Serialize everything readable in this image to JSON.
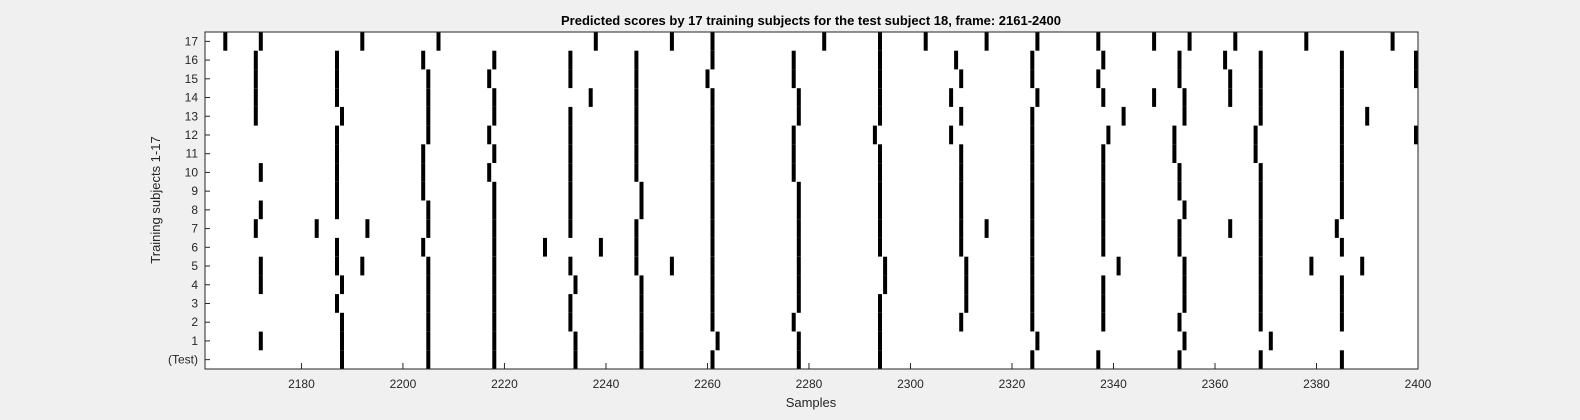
{
  "chart_data": {
    "type": "raster",
    "title": "Predicted scores by 17 training subjects for the test subject 18, frame: 2161-2400",
    "xlabel": "Samples",
    "ylabel": "Training subjects 1-17",
    "xlim": [
      2161,
      2400
    ],
    "x_ticks": [
      2180,
      2200,
      2220,
      2240,
      2260,
      2280,
      2300,
      2320,
      2340,
      2360,
      2380,
      2400
    ],
    "y_tick_labels": [
      "(Test)",
      "1",
      "2",
      "3",
      "4",
      "5",
      "6",
      "7",
      "8",
      "9",
      "10",
      "11",
      "12",
      "13",
      "14",
      "15",
      "16",
      "17"
    ],
    "colors": {
      "spike": "#000000",
      "plot_bg": "#ffffff",
      "figure_bg": "#f0f0f0"
    },
    "rows": [
      {
        "label": "(Test)",
        "events": [
          2188,
          2205,
          2218,
          2234,
          2247,
          2261,
          2278,
          2294,
          2324,
          2337,
          2353,
          2369,
          2385
        ]
      },
      {
        "label": "1",
        "events": [
          2172,
          2188,
          2205,
          2218,
          2234,
          2247,
          2262,
          2278,
          2294,
          2325,
          2354,
          2371
        ]
      },
      {
        "label": "2",
        "events": [
          2188,
          2205,
          2218,
          2233,
          2247,
          2261,
          2277,
          2294,
          2310,
          2324,
          2338,
          2353,
          2369,
          2385
        ]
      },
      {
        "label": "3",
        "events": [
          2187,
          2205,
          2218,
          2233,
          2247,
          2261,
          2278,
          2294,
          2311,
          2324,
          2338,
          2354,
          2369,
          2385
        ]
      },
      {
        "label": "4",
        "events": [
          2172,
          2188,
          2205,
          2218,
          2234,
          2247,
          2261,
          2278,
          2295,
          2311,
          2324,
          2338,
          2354,
          2369,
          2385
        ]
      },
      {
        "label": "5",
        "events": [
          2172,
          2187,
          2192,
          2205,
          2218,
          2233,
          2246,
          2253,
          2261,
          2278,
          2295,
          2311,
          2324,
          2341,
          2354,
          2369,
          2379,
          2389
        ]
      },
      {
        "label": "6",
        "events": [
          2187,
          2204,
          2218,
          2228,
          2239,
          2246,
          2261,
          2278,
          2294,
          2310,
          2324,
          2338,
          2353,
          2369,
          2385
        ]
      },
      {
        "label": "7",
        "events": [
          2171,
          2183,
          2193,
          2205,
          2218,
          2233,
          2246,
          2261,
          2278,
          2294,
          2310,
          2315,
          2324,
          2338,
          2353,
          2363,
          2369,
          2384
        ]
      },
      {
        "label": "8",
        "events": [
          2172,
          2187,
          2205,
          2218,
          2233,
          2247,
          2261,
          2278,
          2294,
          2310,
          2324,
          2338,
          2354,
          2369,
          2385
        ]
      },
      {
        "label": "9",
        "events": [
          2187,
          2204,
          2218,
          2233,
          2247,
          2261,
          2278,
          2294,
          2310,
          2324,
          2338,
          2353,
          2369,
          2385
        ]
      },
      {
        "label": "10",
        "events": [
          2172,
          2187,
          2204,
          2217,
          2233,
          2246,
          2261,
          2277,
          2294,
          2310,
          2324,
          2338,
          2353,
          2369,
          2385
        ]
      },
      {
        "label": "11",
        "events": [
          2187,
          2204,
          2218,
          2233,
          2246,
          2261,
          2277,
          2294,
          2310,
          2324,
          2338,
          2352,
          2368,
          2385
        ]
      },
      {
        "label": "12",
        "events": [
          2187,
          2205,
          2217,
          2233,
          2246,
          2261,
          2277,
          2293,
          2308,
          2324,
          2339,
          2352,
          2368,
          2385,
          2400
        ]
      },
      {
        "label": "13",
        "events": [
          2171,
          2188,
          2205,
          2218,
          2233,
          2246,
          2261,
          2278,
          2294,
          2310,
          2324,
          2342,
          2354,
          2369,
          2385,
          2390
        ]
      },
      {
        "label": "14",
        "events": [
          2171,
          2187,
          2205,
          2218,
          2237,
          2246,
          2261,
          2278,
          2294,
          2308,
          2325,
          2338,
          2348,
          2354,
          2363,
          2369,
          2385
        ]
      },
      {
        "label": "15",
        "events": [
          2171,
          2187,
          2205,
          2217,
          2233,
          2246,
          2260,
          2277,
          2294,
          2310,
          2324,
          2337,
          2353,
          2363,
          2369,
          2385,
          2400
        ]
      },
      {
        "label": "16",
        "events": [
          2171,
          2187,
          2204,
          2218,
          2233,
          2246,
          2261,
          2277,
          2294,
          2309,
          2324,
          2338,
          2353,
          2362,
          2369,
          2385,
          2400
        ]
      },
      {
        "label": "17",
        "events": [
          2165,
          2172,
          2192,
          2207,
          2238,
          2253,
          2261,
          2283,
          2294,
          2303,
          2315,
          2325,
          2337,
          2348,
          2355,
          2364,
          2378,
          2395
        ]
      }
    ]
  }
}
